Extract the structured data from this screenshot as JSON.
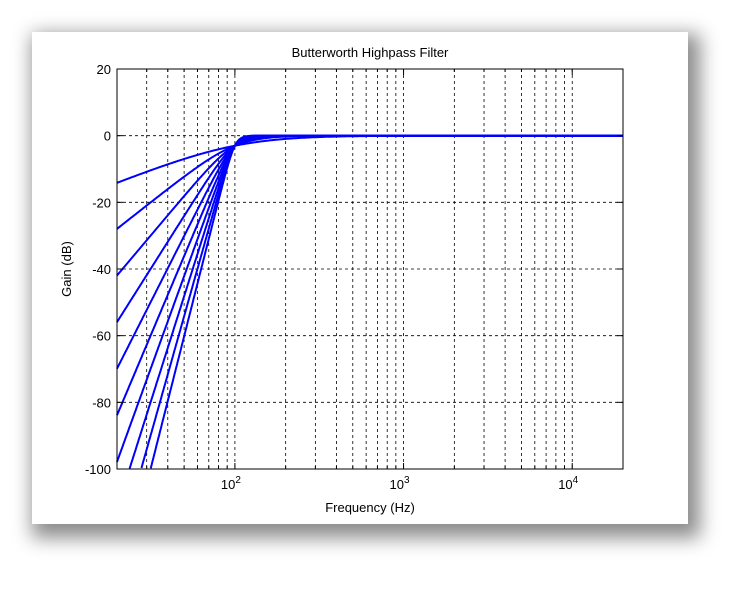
{
  "chart_data": {
    "type": "line",
    "title": "Butterworth Highpass Filter",
    "xlabel": "Frequency (Hz)",
    "ylabel": "Gain (dB)",
    "xscale": "log",
    "xlim": [
      20,
      20000
    ],
    "ylim": [
      -100,
      20
    ],
    "yticks": [
      20,
      0,
      -20,
      -40,
      -60,
      -80,
      -100
    ],
    "xticks": [
      {
        "value": 100,
        "base": "10",
        "exp": "2"
      },
      {
        "value": 1000,
        "base": "10",
        "exp": "3"
      },
      {
        "value": 10000,
        "base": "10",
        "exp": "4"
      }
    ],
    "grid": true,
    "grid_style": "dashed",
    "legend": "none",
    "line_color": "#0000ff",
    "cutoff_hz": 100,
    "series": [
      {
        "order": 1
      },
      {
        "order": 2
      },
      {
        "order": 3
      },
      {
        "order": 4
      },
      {
        "order": 5
      },
      {
        "order": 6
      },
      {
        "order": 7
      },
      {
        "order": 8
      },
      {
        "order": 9
      },
      {
        "order": 10
      }
    ]
  }
}
